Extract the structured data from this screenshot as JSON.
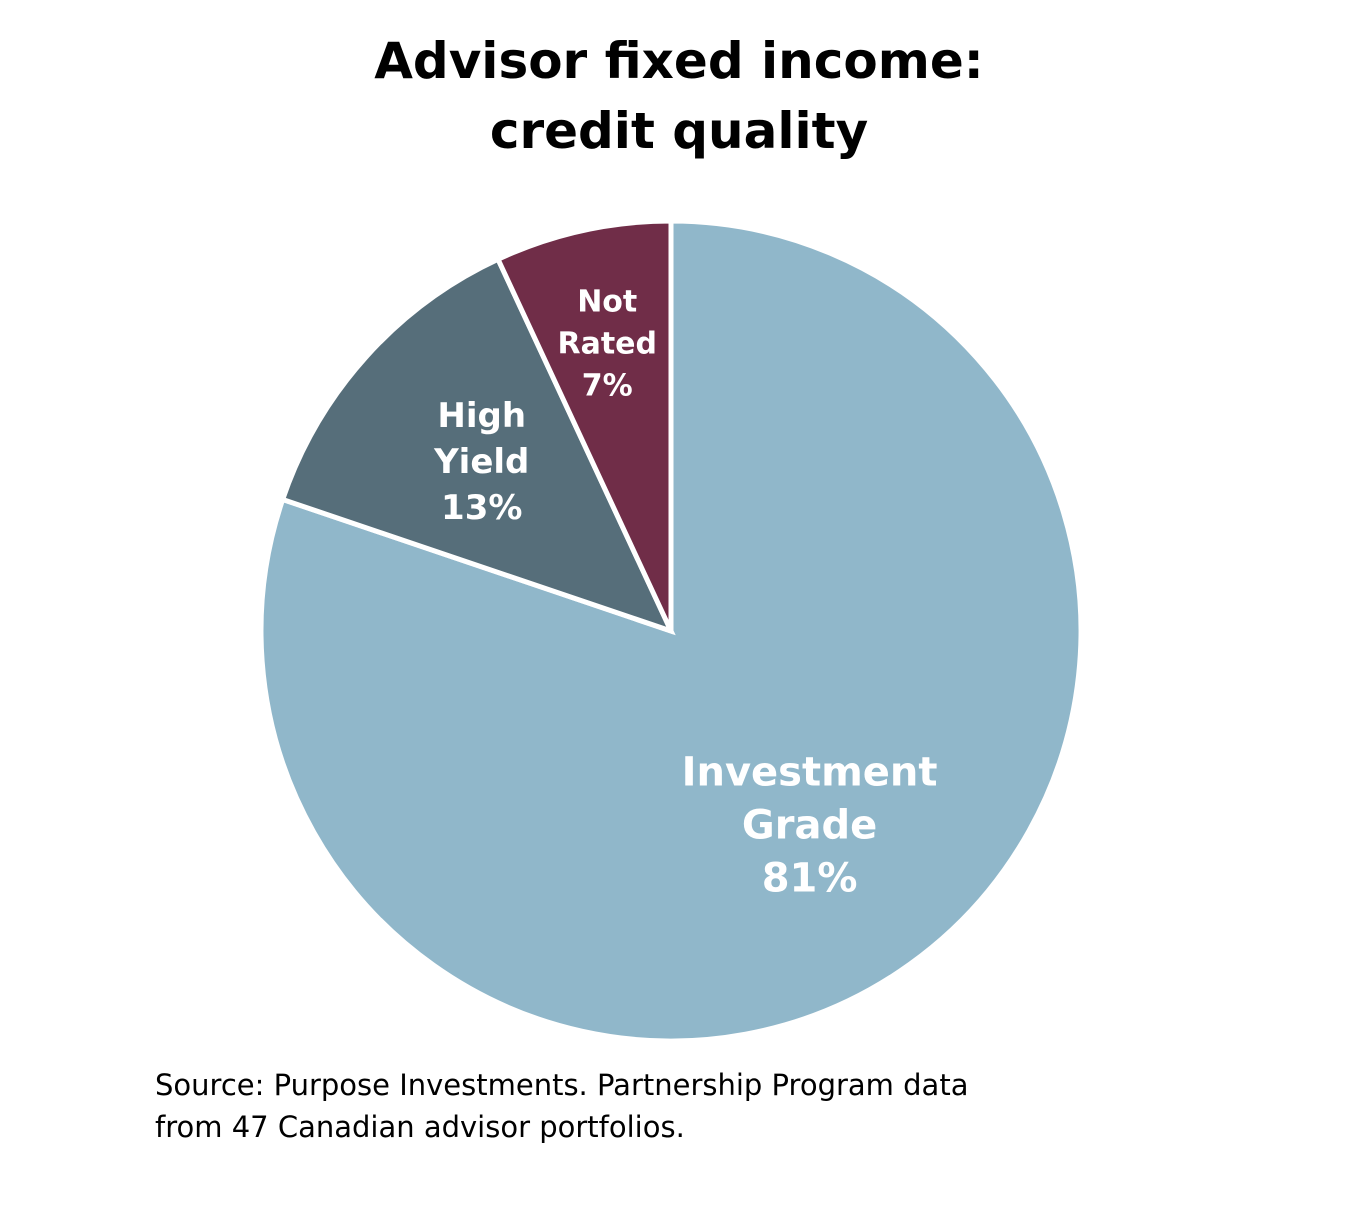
{
  "chart_data": {
    "type": "pie",
    "title_lines": [
      "Advisor fixed income:",
      "credit quality"
    ],
    "slices": [
      {
        "name": "Investment Grade",
        "label_lines": [
          "Investment",
          "Grade",
          "81%"
        ],
        "value": 81,
        "color": "#90b7ca"
      },
      {
        "name": "High Yield",
        "label_lines": [
          "High",
          "Yield",
          "13%"
        ],
        "value": 13,
        "color": "#566e7a"
      },
      {
        "name": "Not Rated",
        "label_lines": [
          "Not",
          "Rated",
          "7%"
        ],
        "value": 7,
        "color": "#702d48"
      }
    ],
    "start_angle": "12 o'clock",
    "direction": "clockwise",
    "legend": "none"
  },
  "footer": {
    "source_lines": [
      "Source: Purpose Investments. Partnership Program data",
      "from 47 Canadian advisor portfolios."
    ]
  }
}
